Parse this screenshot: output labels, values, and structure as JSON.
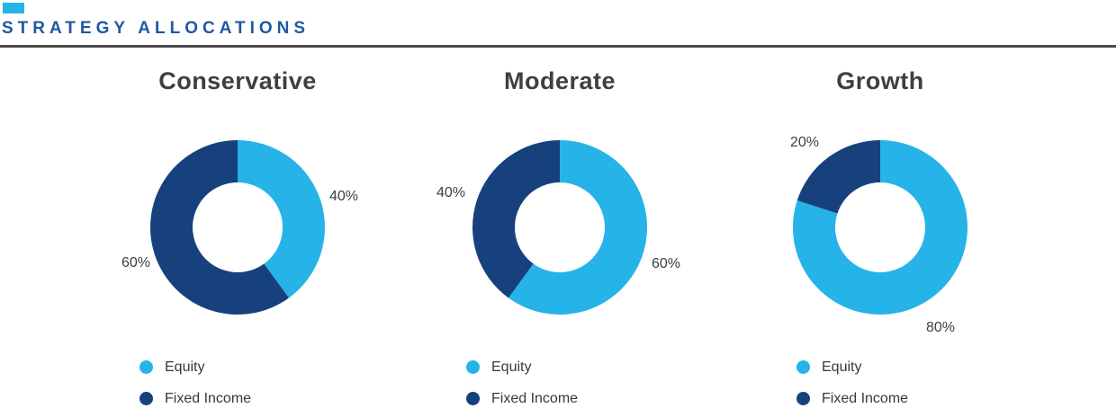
{
  "header": {
    "title": "STRATEGY ALLOCATIONS",
    "accent_color": "#26b3e8",
    "title_color": "#1d59a5",
    "rule_color": "#4a4a4a"
  },
  "palette": {
    "equity": "#26b3e8",
    "fixed_income": "#16417d"
  },
  "chart_data": {
    "type": "pie",
    "variant": "donut",
    "legend_position": "bottom-left",
    "start_angle": "12-oclock-clockwise",
    "charts": [
      {
        "title": "Conservative",
        "slices": [
          {
            "name": "Equity",
            "value": 40,
            "label": "40%",
            "color": "#26b3e8"
          },
          {
            "name": "Fixed Income",
            "value": 60,
            "label": "60%",
            "color": "#16417d"
          }
        ]
      },
      {
        "title": "Moderate",
        "slices": [
          {
            "name": "Equity",
            "value": 60,
            "label": "60%",
            "color": "#26b3e8"
          },
          {
            "name": "Fixed Income",
            "value": 40,
            "label": "40%",
            "color": "#16417d"
          }
        ]
      },
      {
        "title": "Growth",
        "slices": [
          {
            "name": "Equity",
            "value": 80,
            "label": "80%",
            "color": "#26b3e8"
          },
          {
            "name": "Fixed Income",
            "value": 20,
            "label": "20%",
            "color": "#16417d"
          }
        ]
      }
    ]
  }
}
